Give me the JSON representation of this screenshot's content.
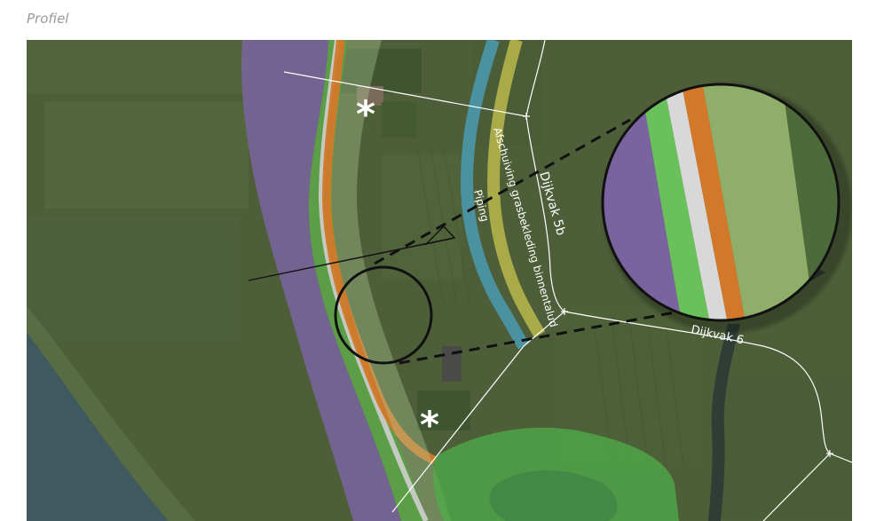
{
  "page": {
    "title": "Profiel"
  },
  "map": {
    "section_labels": {
      "dijkvak_5b": "Dijkvak 5b",
      "dijkvak_6": "Dijkvak 6"
    },
    "band_labels": {
      "piping": "Piping",
      "afschuiving": "Afschuiving grasbekleding binnentalud"
    },
    "markers": {
      "asterisk_north": "*",
      "asterisk_south": "*"
    },
    "colors": {
      "purple_zone": "#7a64a0",
      "green_zone": "#5fa84a",
      "orange_band": "#d2782a",
      "grey_road": "#cfcfcf",
      "blue_band": "#4b9bb4",
      "olive_band": "#b8b84a",
      "green_water_zone": "#4fae4a",
      "river_water": "#3f5a5f",
      "meadow": "#4d5e38"
    },
    "icons": {
      "zoom_circle": "magnifier-circle-icon",
      "asterisk": "asterisk-icon",
      "sight_line": "viewing-triangle-icon"
    }
  }
}
